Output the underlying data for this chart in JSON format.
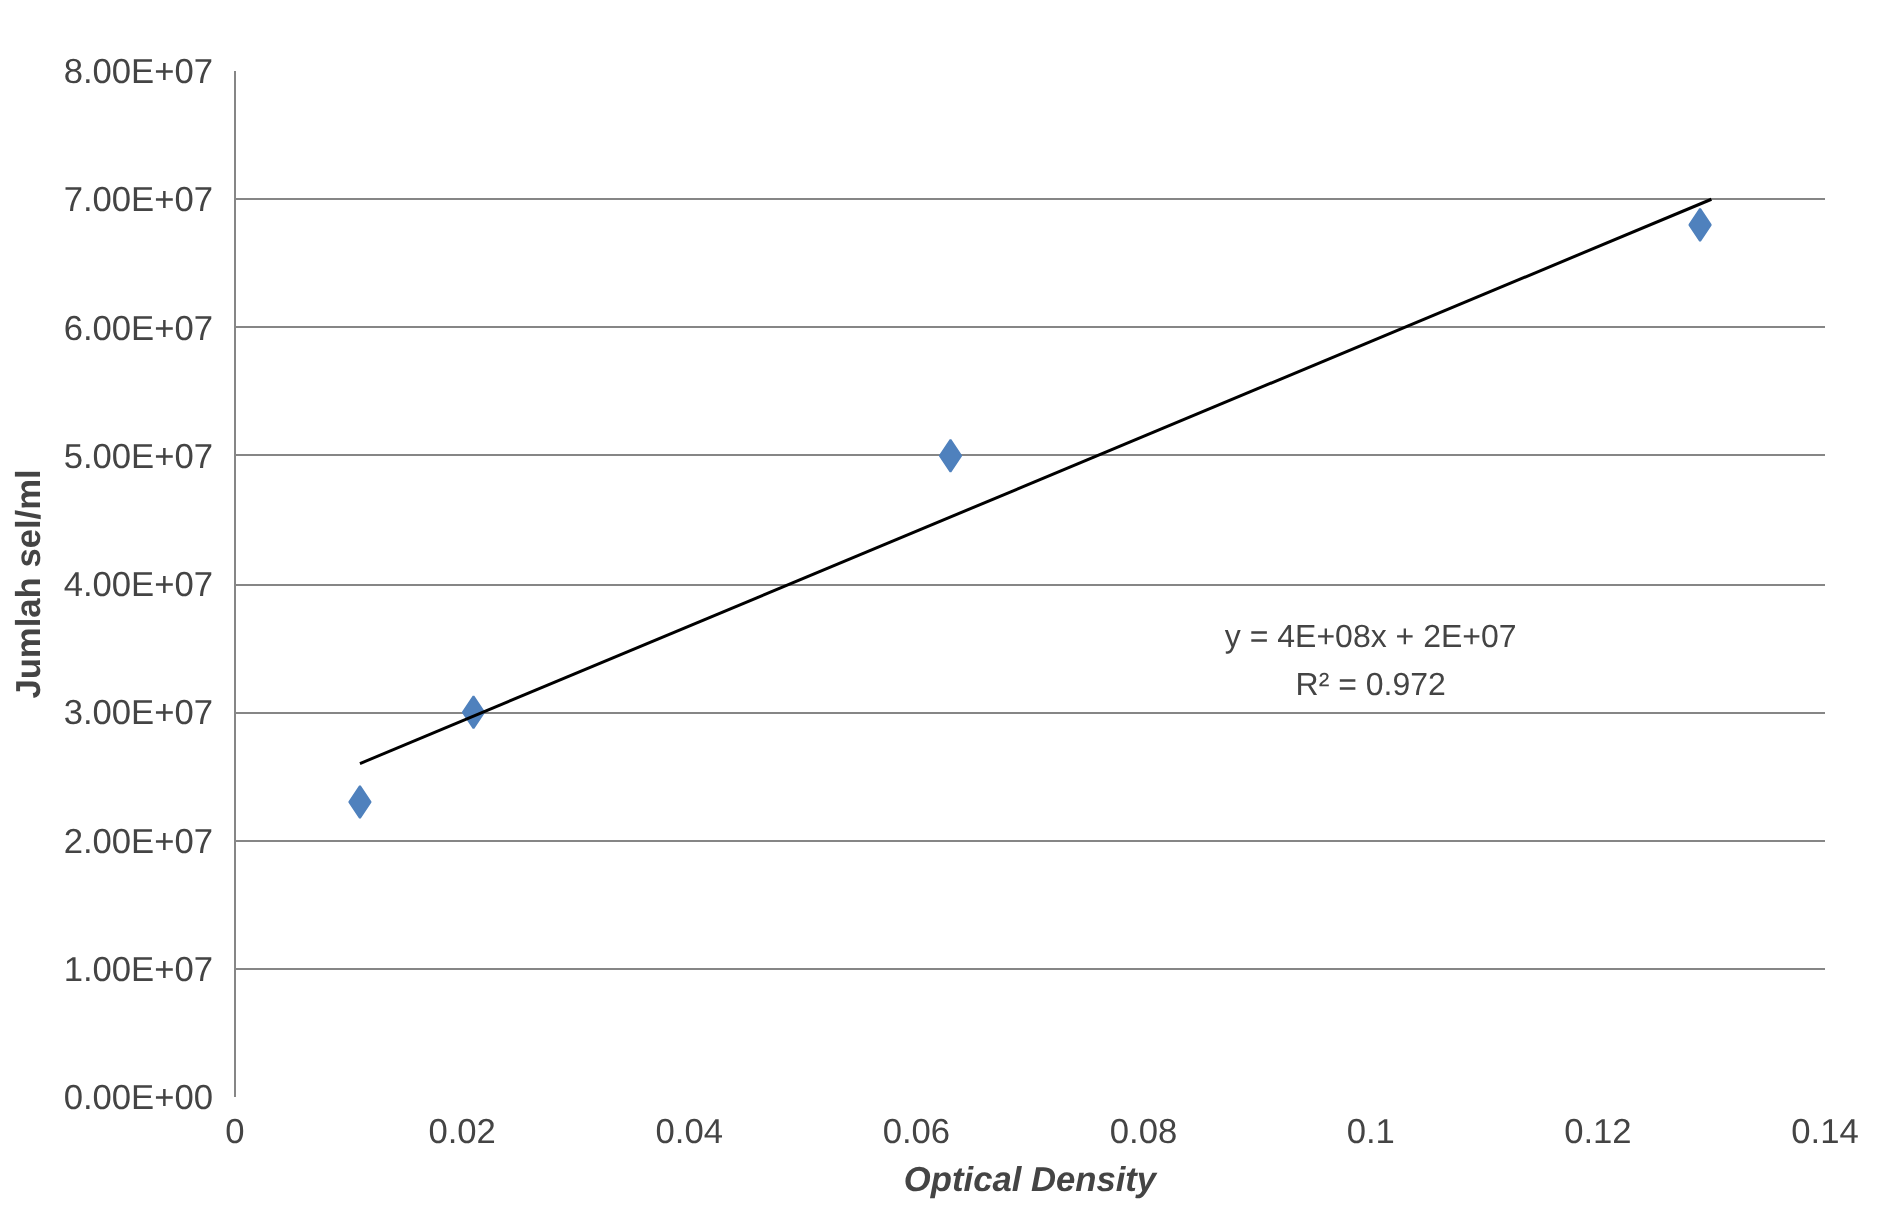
{
  "chart_data": {
    "type": "scatter",
    "xlabel": "Optical Density",
    "ylabel": "Jumlah sel/ml",
    "series": [
      {
        "color": "#4f81bd",
        "marker": "diamond",
        "x": [
          0.011,
          0.021,
          0.063,
          0.129
        ],
        "values": [
          23000000.0,
          30000000.0,
          50000000.0,
          68000000.0
        ]
      },
      {
        "type": "line",
        "color": "#000000",
        "x": [
          0.011,
          0.13
        ],
        "values": [
          26000000.0,
          70000000.0
        ]
      }
    ],
    "xlim": [
      0,
      0.14
    ],
    "xticks": [
      0,
      0.02,
      0.04,
      0.06,
      0.08,
      0.1,
      0.12,
      0.14
    ],
    "ylim": [
      0,
      80000000.0
    ],
    "yticks": [
      {
        "value": 0,
        "label": "0.00E+00"
      },
      {
        "value": 10000000.0,
        "label": "1.00E+07"
      },
      {
        "value": 20000000.0,
        "label": "2.00E+07"
      },
      {
        "value": 30000000.0,
        "label": "3.00E+07"
      },
      {
        "value": 40000000.0,
        "label": "4.00E+07"
      },
      {
        "value": 50000000.0,
        "label": "5.00E+07"
      },
      {
        "value": 60000000.0,
        "label": "6.00E+07"
      },
      {
        "value": 70000000.0,
        "label": "7.00E+07"
      },
      {
        "value": 80000000.0,
        "label": "8.00E+07"
      }
    ],
    "grid": "y",
    "annotations": [
      "y = 4E+08x + 2E+07",
      "R² = 0.972"
    ]
  }
}
